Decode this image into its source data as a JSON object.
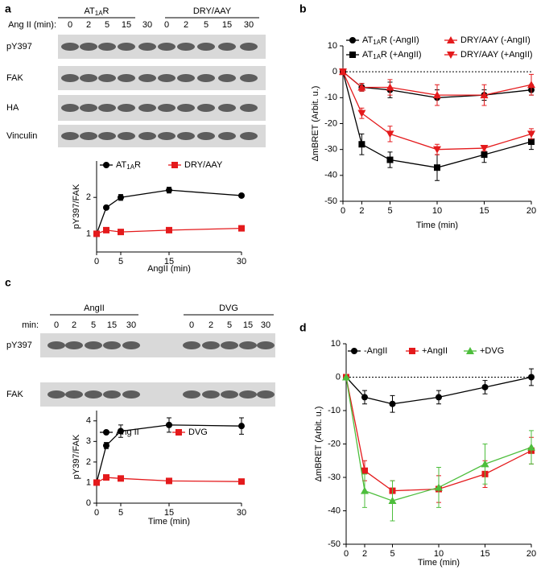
{
  "panel_labels": [
    "a",
    "b",
    "c",
    "d"
  ],
  "blots": [
    {
      "groups": [
        "AT1AR",
        "DRY/AAY"
      ],
      "lane_label": "Ang II (min):",
      "lanes": [
        "0",
        "2",
        "5",
        "15",
        "30",
        "0",
        "2",
        "5",
        "15",
        "30"
      ],
      "rows": [
        "pY397",
        "FAK",
        "HA",
        "Vinculin"
      ]
    },
    {
      "groups": [
        "AngII",
        "DVG"
      ],
      "lane_label": "min:",
      "lanes": [
        "0",
        "2",
        "5",
        "15",
        "30",
        "0",
        "2",
        "5",
        "15",
        "30"
      ],
      "rows": [
        "pY397",
        "FAK"
      ]
    }
  ],
  "chart_data": [
    {
      "type": "line",
      "ylabel": "pY397/FAK",
      "xlabel": "AngII (min)",
      "x": [
        0,
        2,
        5,
        15,
        30
      ],
      "xlim": [
        0,
        30
      ],
      "xticks": [
        0,
        5,
        15,
        30
      ],
      "ylim": [
        0.5,
        3
      ],
      "yticks": [
        1,
        2
      ],
      "series": [
        {
          "name": "AT1AR",
          "color": "#000000",
          "marker": "circle",
          "values": [
            1,
            1.72,
            2.0,
            2.2,
            2.05
          ],
          "errors": [
            0,
            0.03,
            0.08,
            0.08,
            0.03
          ]
        },
        {
          "name": "DRY/AAY",
          "color": "#e41a1c",
          "marker": "square",
          "values": [
            1,
            1.1,
            1.05,
            1.1,
            1.15
          ],
          "errors": [
            0,
            0.02,
            0.02,
            0.02,
            0.02
          ]
        }
      ]
    },
    {
      "type": "line",
      "ylabel": "ΔmBRET (Arbit. u.)",
      "xlabel": "Time (min)",
      "x": [
        0,
        2,
        5,
        10,
        15,
        20
      ],
      "xlim": [
        0,
        20
      ],
      "xticks": [
        0,
        2,
        5,
        10,
        15,
        20
      ],
      "ylim": [
        -50,
        10
      ],
      "yticks": [
        -50,
        -40,
        -30,
        -20,
        -10,
        0,
        10
      ],
      "zero_line": true,
      "series": [
        {
          "name": "AT1AR (-AngII)",
          "color": "#000000",
          "marker": "circle",
          "values": [
            0,
            -6,
            -7,
            -10,
            -9,
            -7
          ],
          "errors": [
            0,
            1.5,
            3,
            3,
            2,
            2
          ]
        },
        {
          "name": "AT1AR (+AngII)",
          "color": "#000000",
          "marker": "square",
          "values": [
            0,
            -28,
            -34,
            -37,
            -32,
            -27
          ],
          "errors": [
            0,
            4,
            3,
            5,
            3,
            3
          ]
        },
        {
          "name": "DRY/AAY (-AngII)",
          "color": "#e41a1c",
          "marker": "triangle-up",
          "values": [
            0,
            -6,
            -6,
            -9,
            -9,
            -5
          ],
          "errors": [
            0,
            1.5,
            3,
            4,
            4,
            4
          ]
        },
        {
          "name": "DRY/AAY (+AngII)",
          "color": "#e41a1c",
          "marker": "triangle-down",
          "values": [
            0,
            -16,
            -24,
            -30,
            -29.5,
            -24
          ],
          "errors": [
            0,
            2,
            3,
            2,
            1,
            2
          ]
        }
      ]
    },
    {
      "type": "line",
      "ylabel": "pY397/FAK",
      "xlabel": "Time (min)",
      "x": [
        0,
        2,
        5,
        15,
        30
      ],
      "xlim": [
        0,
        30
      ],
      "xticks": [
        0,
        5,
        15,
        30
      ],
      "ylim": [
        0,
        4.5
      ],
      "yticks": [
        0,
        1,
        2,
        3,
        4
      ],
      "series": [
        {
          "name": "Ang II",
          "color": "#000000",
          "marker": "circle",
          "values": [
            1,
            2.8,
            3.5,
            3.8,
            3.75
          ],
          "errors": [
            0.1,
            0.15,
            0.3,
            0.35,
            0.4
          ]
        },
        {
          "name": "DVG",
          "color": "#e41a1c",
          "marker": "square",
          "values": [
            1,
            1.25,
            1.2,
            1.08,
            1.05
          ],
          "errors": [
            0.1,
            0.05,
            0.08,
            0.04,
            0.04
          ]
        }
      ]
    },
    {
      "type": "line",
      "xlabel": "Time (min)",
      "ylabel": "ΔmBRET (Arbit. u.)",
      "x": [
        0,
        2,
        5,
        10,
        15,
        20
      ],
      "xlim": [
        0,
        20
      ],
      "xticks": [
        0,
        2,
        5,
        10,
        15,
        20
      ],
      "ylim": [
        -50,
        10
      ],
      "yticks": [
        -50,
        -40,
        -30,
        -20,
        -10,
        0,
        10
      ],
      "zero_line": true,
      "series": [
        {
          "name": "-AngII",
          "color": "#000000",
          "marker": "circle",
          "values": [
            0,
            -6,
            -8,
            -6,
            -3,
            0
          ],
          "errors": [
            0,
            2,
            2.5,
            2,
            2,
            2.5
          ]
        },
        {
          "name": "+AngII",
          "color": "#e41a1c",
          "marker": "square",
          "values": [
            0,
            -28,
            -34,
            -33.5,
            -29,
            -22
          ],
          "errors": [
            0,
            3,
            3,
            4,
            4,
            4
          ]
        },
        {
          "name": "+DVG",
          "color": "#4dbe3c",
          "marker": "triangle-up",
          "values": [
            0,
            -34,
            -37,
            -33,
            -26,
            -21
          ],
          "errors": [
            0,
            5,
            6,
            6,
            6,
            5
          ]
        }
      ]
    }
  ]
}
